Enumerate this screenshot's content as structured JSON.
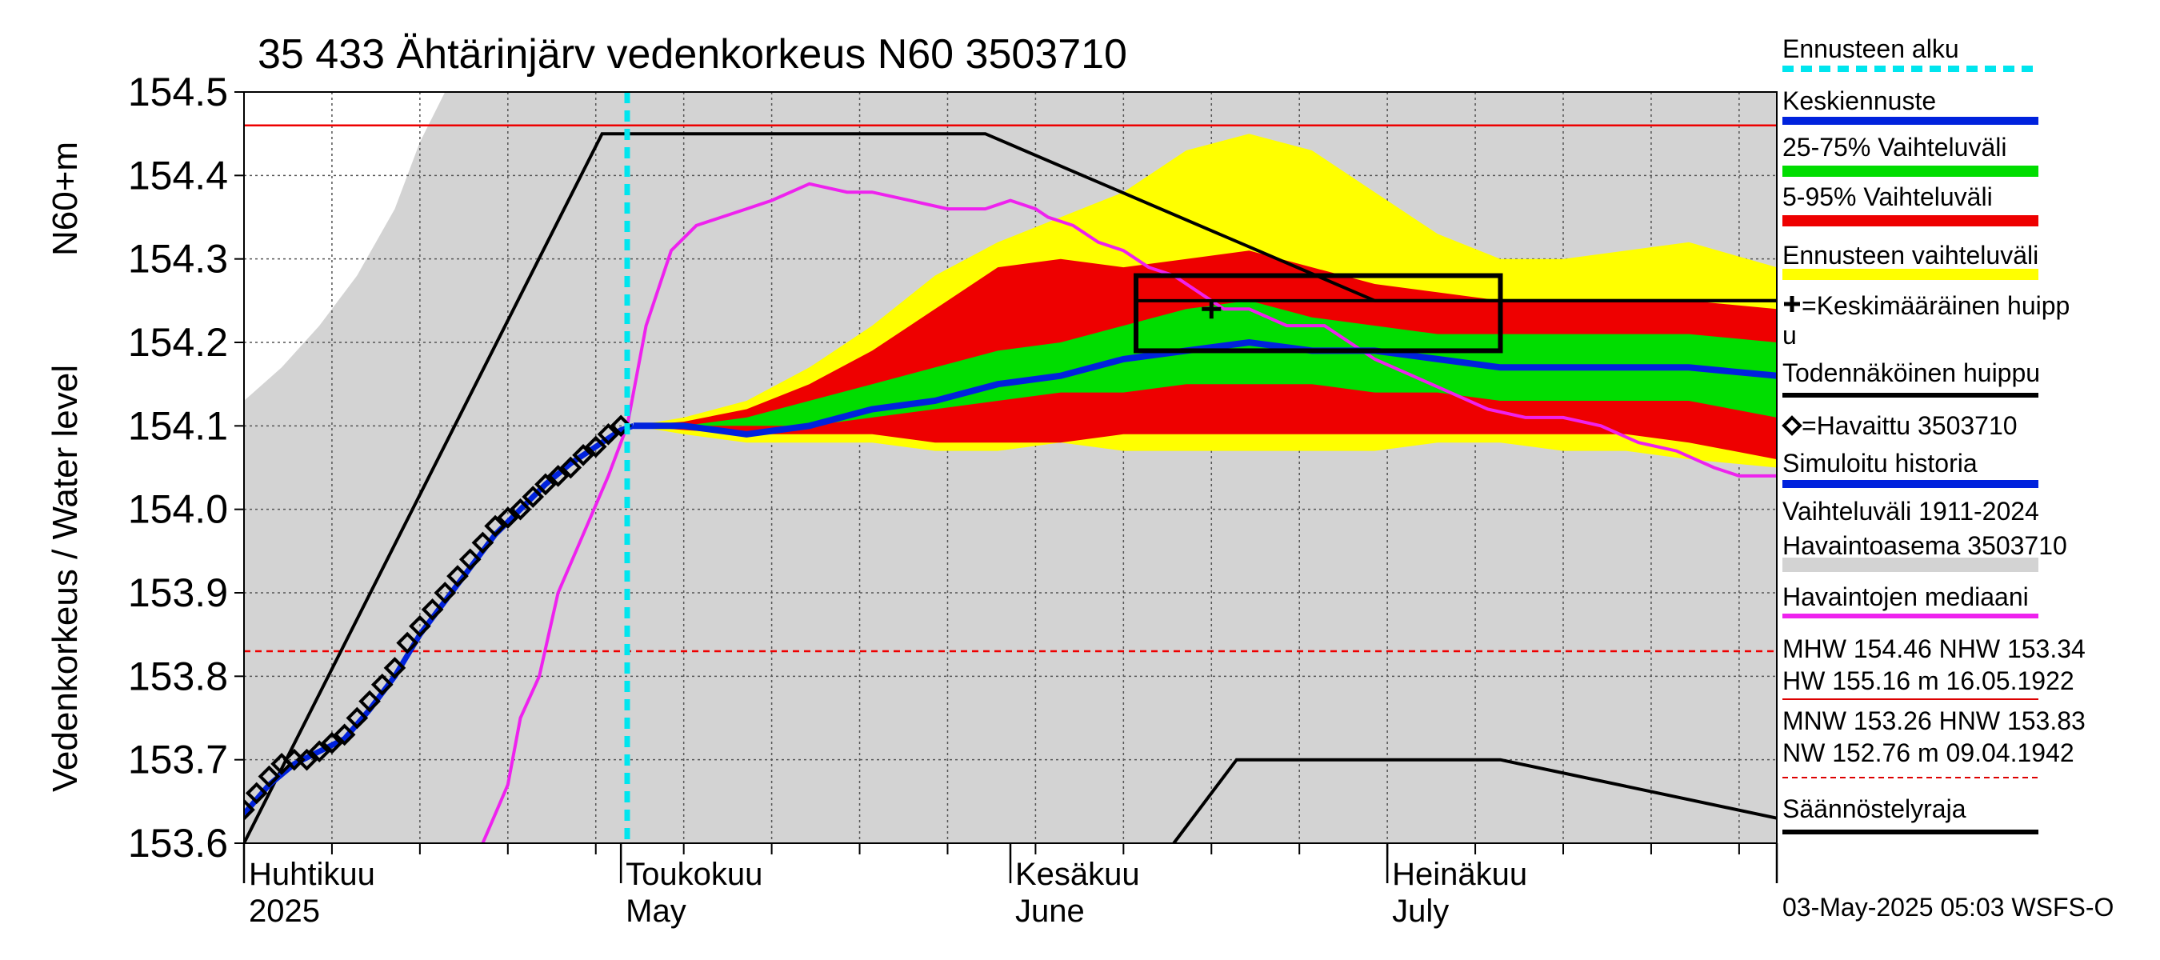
{
  "chart_data": {
    "type": "line",
    "title": "35 433 Ähtärinjärv vedenkorkeus N60 3503710",
    "ylabel_top": "N60+m",
    "ylabel_bottom": "Vedenkorkeus / Water level",
    "ylim": [
      153.6,
      154.5
    ],
    "xlim_days": [
      0,
      122
    ],
    "y_ticks": [
      {
        "v": 153.6,
        "label": "153.6"
      },
      {
        "v": 153.7,
        "label": "153.7"
      },
      {
        "v": 153.8,
        "label": "153.8"
      },
      {
        "v": 153.9,
        "label": "153.9"
      },
      {
        "v": 154.0,
        "label": "154.0"
      },
      {
        "v": 154.1,
        "label": "154.1"
      },
      {
        "v": 154.2,
        "label": "154.2"
      },
      {
        "v": 154.3,
        "label": "154.3"
      },
      {
        "v": 154.4,
        "label": "154.4"
      },
      {
        "v": 154.5,
        "label": "154.5"
      }
    ],
    "month_starts": [
      0,
      30,
      61,
      91,
      122
    ],
    "x_month_labels": [
      {
        "day": 0,
        "fi": "Huhtikuu",
        "en": "2025"
      },
      {
        "day": 30,
        "fi": "Toukokuu",
        "en": "May"
      },
      {
        "day": 61,
        "fi": "Kesäkuu",
        "en": "June"
      },
      {
        "day": 91,
        "fi": "Heinäkuu",
        "en": "July"
      }
    ],
    "forecast_start_day": 30.5,
    "mhw_level": 154.46,
    "nhw_level": 153.83,
    "series": {
      "historical_range": [
        [
          0,
          154.13
        ],
        [
          3,
          154.17
        ],
        [
          6,
          154.22
        ],
        [
          9,
          154.28
        ],
        [
          12,
          154.36
        ],
        [
          14,
          154.44
        ],
        [
          16,
          154.5
        ],
        [
          122,
          154.5
        ]
      ],
      "historical_range_low": 153.6,
      "forecast_range": {
        "x": [
          31,
          35,
          40,
          45,
          50,
          55,
          60,
          65,
          70,
          75,
          80,
          85,
          90,
          95,
          100,
          105,
          110,
          115,
          122
        ],
        "hi": [
          154.1,
          154.11,
          154.13,
          154.17,
          154.22,
          154.28,
          154.32,
          154.35,
          154.38,
          154.43,
          154.45,
          154.43,
          154.38,
          154.33,
          154.3,
          154.3,
          154.31,
          154.32,
          154.29
        ],
        "lo": [
          154.1,
          154.09,
          154.08,
          154.08,
          154.08,
          154.07,
          154.07,
          154.08,
          154.07,
          154.07,
          154.07,
          154.07,
          154.07,
          154.08,
          154.08,
          154.07,
          154.07,
          154.06,
          154.05
        ]
      },
      "p5_95": {
        "x": [
          31,
          35,
          40,
          45,
          50,
          55,
          60,
          65,
          70,
          75,
          80,
          85,
          90,
          95,
          100,
          105,
          110,
          115,
          122
        ],
        "hi": [
          154.1,
          154.105,
          154.12,
          154.15,
          154.19,
          154.24,
          154.29,
          154.3,
          154.29,
          154.3,
          154.31,
          154.29,
          154.27,
          154.26,
          154.25,
          154.25,
          154.25,
          154.25,
          154.24
        ],
        "lo": [
          154.1,
          154.095,
          154.09,
          154.09,
          154.09,
          154.08,
          154.08,
          154.08,
          154.09,
          154.09,
          154.09,
          154.09,
          154.09,
          154.09,
          154.09,
          154.09,
          154.09,
          154.08,
          154.06
        ]
      },
      "p25_75": {
        "x": [
          31,
          35,
          40,
          45,
          50,
          55,
          60,
          65,
          70,
          75,
          80,
          85,
          90,
          95,
          100,
          105,
          110,
          115,
          122
        ],
        "hi": [
          154.1,
          154.1,
          154.11,
          154.13,
          154.15,
          154.17,
          154.19,
          154.2,
          154.22,
          154.24,
          154.25,
          154.23,
          154.22,
          154.21,
          154.21,
          154.21,
          154.21,
          154.21,
          154.2
        ],
        "lo": [
          154.1,
          154.1,
          154.1,
          154.1,
          154.11,
          154.12,
          154.13,
          154.14,
          154.14,
          154.15,
          154.15,
          154.15,
          154.14,
          154.14,
          154.13,
          154.13,
          154.13,
          154.13,
          154.11
        ]
      },
      "mean_forecast": {
        "x": [
          31,
          35,
          40,
          45,
          50,
          55,
          60,
          65,
          70,
          75,
          80,
          85,
          90,
          95,
          100,
          105,
          110,
          115,
          122
        ],
        "y": [
          154.1,
          154.1,
          154.09,
          154.1,
          154.12,
          154.13,
          154.15,
          154.16,
          154.18,
          154.19,
          154.2,
          154.19,
          154.19,
          154.18,
          154.17,
          154.17,
          154.17,
          154.17,
          154.16
        ]
      },
      "median_history": {
        "x": [
          19,
          21,
          22,
          23.5,
          25,
          27,
          29,
          30.5,
          32,
          34,
          36,
          38,
          40,
          42,
          45,
          48,
          50,
          53,
          56,
          59,
          61,
          63,
          64,
          66,
          68,
          70,
          72,
          74,
          76,
          78,
          80,
          83,
          86,
          90,
          93,
          96,
          99,
          102,
          105,
          108,
          111,
          114,
          117,
          119,
          122
        ],
        "y": [
          153.6,
          153.67,
          153.75,
          153.8,
          153.9,
          153.97,
          154.04,
          154.1,
          154.22,
          154.31,
          154.34,
          154.35,
          154.36,
          154.37,
          154.39,
          154.38,
          154.38,
          154.37,
          154.36,
          154.36,
          154.37,
          154.36,
          154.35,
          154.34,
          154.32,
          154.31,
          154.29,
          154.28,
          154.26,
          154.24,
          154.24,
          154.22,
          154.22,
          154.18,
          154.16,
          154.14,
          154.12,
          154.11,
          154.11,
          154.1,
          154.08,
          154.07,
          154.05,
          154.04,
          154.04
        ]
      },
      "regulation_upper": {
        "x": [
          0,
          28.5,
          59,
          90,
          122
        ],
        "y": [
          153.6,
          154.45,
          154.45,
          154.25,
          154.25
        ]
      },
      "regulation_lower": {
        "x": [
          74,
          79,
          100,
          122
        ],
        "y": [
          153.6,
          153.7,
          153.7,
          153.63
        ]
      },
      "observed": {
        "x": [
          0,
          1,
          2,
          3,
          4,
          5,
          6,
          7,
          8,
          9,
          10,
          11,
          12,
          13,
          14,
          15,
          16,
          17,
          18,
          19,
          20,
          21,
          22,
          23,
          24,
          25,
          26,
          27,
          28,
          29,
          30
        ],
        "y": [
          153.64,
          153.66,
          153.68,
          153.695,
          153.7,
          153.7,
          153.71,
          153.72,
          153.73,
          153.75,
          153.77,
          153.79,
          153.81,
          153.84,
          153.86,
          153.88,
          153.9,
          153.92,
          153.94,
          153.96,
          153.98,
          153.99,
          154.0,
          154.015,
          154.03,
          154.04,
          154.05,
          154.065,
          154.075,
          154.09,
          154.1
        ]
      },
      "simulated": {
        "x": [
          0,
          2,
          4,
          6,
          8,
          10,
          12,
          14,
          16,
          18,
          20,
          22,
          24,
          26,
          28,
          30,
          31
        ],
        "y": [
          153.635,
          153.67,
          153.695,
          153.71,
          153.725,
          153.76,
          153.8,
          153.85,
          153.89,
          153.93,
          153.97,
          154.0,
          154.03,
          154.055,
          154.075,
          154.095,
          154.1
        ]
      }
    },
    "peak_box": {
      "x": [
        71,
        100
      ],
      "y": [
        154.19,
        154.28
      ]
    },
    "mean_peak": {
      "x": 77,
      "y": 154.24
    },
    "probable_peak_level": 154.25,
    "legend": [
      {
        "key": "forecast_start",
        "label": "Ennusteen alku",
        "color": "#00e5ee",
        "style": "dashed"
      },
      {
        "key": "mean",
        "label": "Keskiennuste",
        "color": "#0022dd",
        "style": "line"
      },
      {
        "key": "p25_75",
        "label": "25-75% Vaihteluväli",
        "color": "#00dd00",
        "style": "band"
      },
      {
        "key": "p5_95",
        "label": "5-95% Vaihteluväli",
        "color": "#ee0000",
        "style": "band"
      },
      {
        "key": "range",
        "label": "Ennusteen vaihteluväli",
        "color": "#ffff00",
        "style": "band"
      },
      {
        "key": "mean_peak",
        "label": "=Keskimääräinen huipp",
        "label2": "u",
        "color": "#000000",
        "style": "plus"
      },
      {
        "key": "probable_peak",
        "label": "Todennäköinen huippu",
        "color": "#000000",
        "style": "line"
      },
      {
        "key": "observed",
        "label": "=Havaittu 3503710",
        "color": "#000000",
        "style": "diamond"
      },
      {
        "key": "simulated",
        "label": "Simuloitu historia",
        "color": "#0022dd",
        "style": "line"
      },
      {
        "key": "hist_range",
        "label": "Vaihteluväli 1911-2024",
        "label2": " Havaintoasema 3503710",
        "color": "#d3d3d3",
        "style": "band"
      },
      {
        "key": "median",
        "label": "Havaintojen mediaani",
        "color": "#ee22ee",
        "style": "line"
      },
      {
        "key": "mhw",
        "label": "MHW 154.46 NHW 153.34",
        "label2": "HW 155.16 m 16.05.1922",
        "color": "#dd0000",
        "style": "thin"
      },
      {
        "key": "mnw",
        "label": "MNW 153.26 HNW 153.83",
        "label2": "NW 152.76 m 09.04.1942",
        "color": "#dd0000",
        "style": "dashed-thin"
      },
      {
        "key": "regulation",
        "label": "Säännöstelyraja",
        "color": "#000000",
        "style": "line"
      }
    ],
    "footer": "03-May-2025 05:03 WSFS-O"
  }
}
